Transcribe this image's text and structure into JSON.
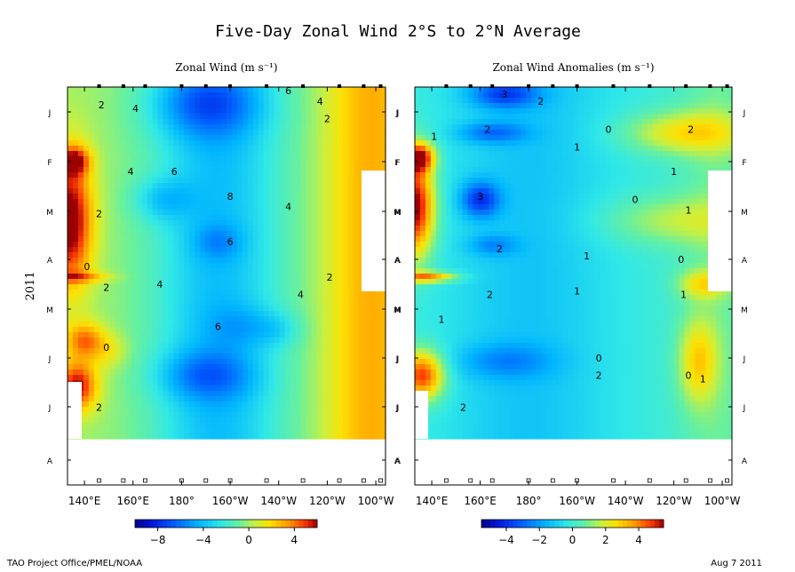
{
  "figure": {
    "title": "Five-Day Zonal Wind  2°S to 2°N Average",
    "year_label": "2011",
    "footer_left": "TAO Project Office/PMEL/NOAA",
    "footer_right": "Aug  7 2011"
  },
  "chart_data": [
    {
      "type": "heatmap",
      "title": "Zonal Wind (m s⁻¹)",
      "x_tick_labels": [
        "140°E",
        "160°E",
        "180°",
        "160°W",
        "140°W",
        "120°W",
        "100°W"
      ],
      "x_ticks_deg_east": [
        140,
        160,
        180,
        200,
        220,
        240,
        260
      ],
      "xlim_deg_east": [
        133,
        264
      ],
      "y_tick_labels": [
        "J",
        "F",
        "M",
        "A",
        "M",
        "J",
        "J",
        "A"
      ],
      "y_axis_label": "2011",
      "colorbar": {
        "ticks": [
          -8,
          -4,
          0,
          4
        ],
        "tick_labels": [
          "−8",
          "−4",
          "0",
          "4"
        ],
        "range": [
          -10,
          6
        ]
      },
      "contour_labels": [
        {
          "text": "2",
          "lon": 147,
          "t": 0.05
        },
        {
          "text": "4",
          "lon": 161,
          "t": 0.06
        },
        {
          "text": "6",
          "lon": 224,
          "t": 0.01
        },
        {
          "text": "4",
          "lon": 237,
          "t": 0.04
        },
        {
          "text": "2",
          "lon": 240,
          "t": 0.09
        },
        {
          "text": "4",
          "lon": 159,
          "t": 0.24
        },
        {
          "text": "6",
          "lon": 177,
          "t": 0.24
        },
        {
          "text": "8",
          "lon": 200,
          "t": 0.31
        },
        {
          "text": "4",
          "lon": 224,
          "t": 0.34
        },
        {
          "text": "2",
          "lon": 146,
          "t": 0.36
        },
        {
          "text": "6",
          "lon": 200,
          "t": 0.44
        },
        {
          "text": "0",
          "lon": 141,
          "t": 0.51
        },
        {
          "text": "2",
          "lon": 149,
          "t": 0.57
        },
        {
          "text": "4",
          "lon": 171,
          "t": 0.56
        },
        {
          "text": "4",
          "lon": 229,
          "t": 0.59
        },
        {
          "text": "2",
          "lon": 241,
          "t": 0.54
        },
        {
          "text": "6",
          "lon": 195,
          "t": 0.68
        },
        {
          "text": "0",
          "lon": 149,
          "t": 0.74
        },
        {
          "text": "2",
          "lon": 146,
          "t": 0.91
        }
      ]
    },
    {
      "type": "heatmap",
      "title": "Zonal Wind Anomalies (m s⁻¹)",
      "x_tick_labels": [
        "140°E",
        "160°E",
        "180°",
        "160°W",
        "140°W",
        "120°W",
        "100°W"
      ],
      "x_ticks_deg_east": [
        140,
        160,
        180,
        200,
        220,
        240,
        260
      ],
      "xlim_deg_east": [
        133,
        264
      ],
      "y_tick_labels": [
        "J",
        "F",
        "M",
        "A",
        "M",
        "J",
        "J",
        "A"
      ],
      "colorbar": {
        "ticks": [
          -4,
          -2,
          0,
          2,
          4
        ],
        "tick_labels": [
          "−4",
          "−2",
          "0",
          "2",
          "4"
        ],
        "range": [
          -5.5,
          5.5
        ]
      },
      "contour_labels": [
        {
          "text": "3",
          "lon": 170,
          "t": 0.02
        },
        {
          "text": "2",
          "lon": 185,
          "t": 0.04
        },
        {
          "text": "2",
          "lon": 163,
          "t": 0.12
        },
        {
          "text": "1",
          "lon": 141,
          "t": 0.14
        },
        {
          "text": "0",
          "lon": 213,
          "t": 0.12
        },
        {
          "text": "2",
          "lon": 247,
          "t": 0.12
        },
        {
          "text": "1",
          "lon": 200,
          "t": 0.17
        },
        {
          "text": "1",
          "lon": 240,
          "t": 0.24
        },
        {
          "text": "3",
          "lon": 160,
          "t": 0.31
        },
        {
          "text": "0",
          "lon": 224,
          "t": 0.32
        },
        {
          "text": "1",
          "lon": 246,
          "t": 0.35
        },
        {
          "text": "1",
          "lon": 204,
          "t": 0.48
        },
        {
          "text": "2",
          "lon": 168,
          "t": 0.46
        },
        {
          "text": "0",
          "lon": 243,
          "t": 0.49
        },
        {
          "text": "2",
          "lon": 164,
          "t": 0.59
        },
        {
          "text": "1",
          "lon": 200,
          "t": 0.58
        },
        {
          "text": "1",
          "lon": 244,
          "t": 0.59
        },
        {
          "text": "1",
          "lon": 144,
          "t": 0.66
        },
        {
          "text": "0",
          "lon": 209,
          "t": 0.77
        },
        {
          "text": "2",
          "lon": 209,
          "t": 0.82
        },
        {
          "text": "0",
          "lon": 246,
          "t": 0.82
        },
        {
          "text": "1",
          "lon": 252,
          "t": 0.83
        },
        {
          "text": "2",
          "lon": 153,
          "t": 0.91
        }
      ]
    }
  ]
}
